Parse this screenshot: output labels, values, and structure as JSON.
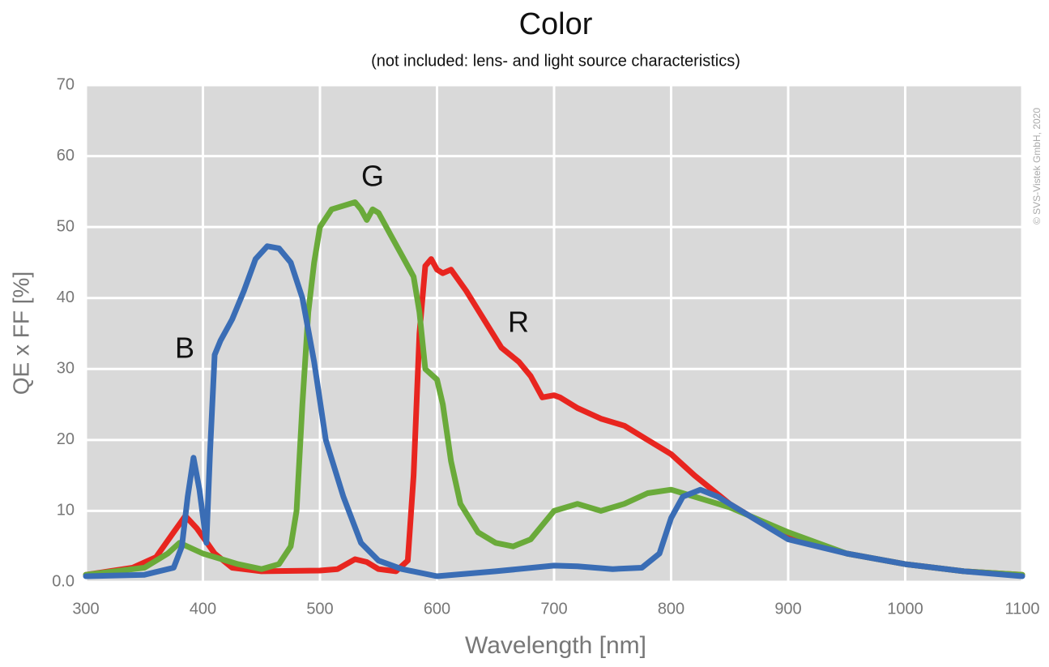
{
  "chart_data": {
    "type": "line",
    "title": "Color",
    "subtitle": "(not included: lens- and light source characteristics)",
    "x_label": "Wavelength [nm]",
    "y_label": "QE x FF [%]",
    "copyright": "© SVS-Vistek GmbH, 2020",
    "annotations": [
      "B",
      "G",
      "R"
    ],
    "xlim": [
      300,
      1100
    ],
    "xticks": [
      300,
      400,
      500,
      600,
      700,
      800,
      900,
      1000,
      1100
    ],
    "ylim": [
      0,
      70
    ],
    "yticks": [
      {
        "value": 0,
        "label": "0.0"
      },
      10,
      20,
      30,
      40,
      50,
      60,
      70
    ],
    "grid": true,
    "series": [
      {
        "name": "R",
        "color": "#e8251f",
        "x": [
          300,
          340,
          360,
          375,
          385,
          395,
          410,
          425,
          450,
          500,
          515,
          530,
          540,
          550,
          565,
          575,
          580,
          585,
          590,
          595,
          600,
          605,
          612,
          625,
          640,
          655,
          670,
          680,
          690,
          700,
          705,
          720,
          740,
          760,
          780,
          800,
          820,
          850,
          880,
          900,
          950,
          1000,
          1050,
          1100
        ],
        "values": [
          1,
          2,
          3.5,
          7,
          9.3,
          7.5,
          4,
          2,
          1.5,
          1.6,
          1.8,
          3.2,
          2.8,
          1.8,
          1.5,
          3,
          15,
          35,
          44.5,
          45.5,
          44,
          43.5,
          44,
          41,
          37,
          33,
          31,
          29,
          26,
          26.3,
          26,
          24.5,
          23,
          22,
          20,
          18,
          15,
          11,
          8,
          6.5,
          4,
          2.5,
          1.5,
          1
        ]
      },
      {
        "name": "G",
        "color": "#6aaa3a",
        "x": [
          300,
          350,
          370,
          380,
          400,
          430,
          450,
          465,
          475,
          480,
          485,
          490,
          495,
          500,
          510,
          530,
          535,
          540,
          545,
          550,
          560,
          570,
          580,
          585,
          590,
          600,
          605,
          612,
          620,
          635,
          650,
          665,
          680,
          700,
          720,
          740,
          760,
          780,
          800,
          820,
          850,
          900,
          950,
          1000,
          1050,
          1100
        ],
        "values": [
          1,
          2,
          4,
          5.5,
          4,
          2.5,
          1.8,
          2.5,
          5,
          10,
          25,
          38,
          45,
          50,
          52.5,
          53.5,
          52.5,
          51,
          52.5,
          52,
          49,
          46,
          43,
          38,
          30,
          28.5,
          25,
          17,
          11,
          7,
          5.5,
          5,
          6,
          10,
          11,
          10,
          11,
          12.5,
          13,
          12,
          10.5,
          7,
          4,
          2.5,
          1.5,
          1
        ]
      },
      {
        "name": "B",
        "color": "#3a6db5",
        "x": [
          300,
          350,
          375,
          382,
          387,
          392,
          397,
          403,
          406,
          410,
          415,
          425,
          435,
          445,
          455,
          465,
          475,
          485,
          495,
          505,
          520,
          535,
          550,
          570,
          600,
          650,
          700,
          720,
          750,
          775,
          790,
          800,
          810,
          825,
          840,
          870,
          900,
          950,
          1000,
          1050,
          1100
        ],
        "values": [
          0.8,
          1,
          2,
          5,
          12,
          17.5,
          13,
          5.5,
          18,
          32,
          34,
          37,
          41,
          45.5,
          47.3,
          47,
          45,
          40,
          31,
          20,
          12,
          5.5,
          3,
          1.8,
          0.8,
          1.5,
          2.3,
          2.2,
          1.8,
          2,
          4,
          9,
          12,
          13,
          12,
          9,
          6,
          4,
          2.5,
          1.5,
          0.8
        ]
      }
    ]
  }
}
